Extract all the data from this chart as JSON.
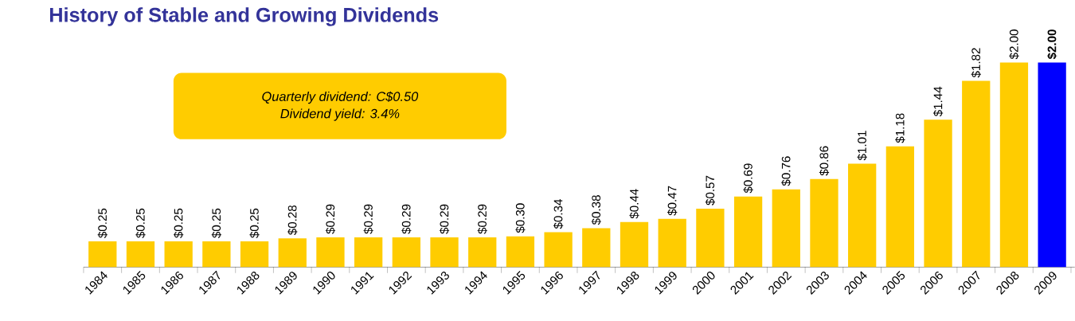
{
  "chart_data": {
    "type": "bar",
    "title": "History of Stable and Growing Dividends",
    "categories": [
      "1984",
      "1985",
      "1986",
      "1987",
      "1988",
      "1989",
      "1990",
      "1991",
      "1992",
      "1993",
      "1994",
      "1995",
      "1996",
      "1997",
      "1998",
      "1999",
      "2000",
      "2001",
      "2002",
      "2003",
      "2004",
      "2005",
      "2006",
      "2007",
      "2008",
      "2009"
    ],
    "values": [
      0.25,
      0.25,
      0.25,
      0.25,
      0.25,
      0.28,
      0.29,
      0.29,
      0.29,
      0.29,
      0.29,
      0.3,
      0.34,
      0.38,
      0.44,
      0.47,
      0.57,
      0.69,
      0.76,
      0.86,
      1.01,
      1.18,
      1.44,
      1.82,
      2.0,
      2.0
    ],
    "colors": [
      "#ffcc00",
      "#ffcc00",
      "#ffcc00",
      "#ffcc00",
      "#ffcc00",
      "#ffcc00",
      "#ffcc00",
      "#ffcc00",
      "#ffcc00",
      "#ffcc00",
      "#ffcc00",
      "#ffcc00",
      "#ffcc00",
      "#ffcc00",
      "#ffcc00",
      "#ffcc00",
      "#ffcc00",
      "#ffcc00",
      "#ffcc00",
      "#ffcc00",
      "#ffcc00",
      "#ffcc00",
      "#ffcc00",
      "#ffcc00",
      "#ffcc00",
      "#0000ff"
    ],
    "value_labels": [
      "$0.25",
      "$0.25",
      "$0.25",
      "$0.25",
      "$0.25",
      "$0.28",
      "$0.29",
      "$0.29",
      "$0.29",
      "$0.29",
      "$0.29",
      "$0.30",
      "$0.34",
      "$0.38",
      "$0.44",
      "$0.47",
      "$0.57",
      "$0.69",
      "$0.76",
      "$0.86",
      "$1.01",
      "$1.18",
      "$1.44",
      "$1.82",
      "$2.00",
      "**$2.00**"
    ],
    "annotations": [
      "Quarterly dividend: C$0.50",
      "Dividend yield:  3.4%"
    ]
  }
}
